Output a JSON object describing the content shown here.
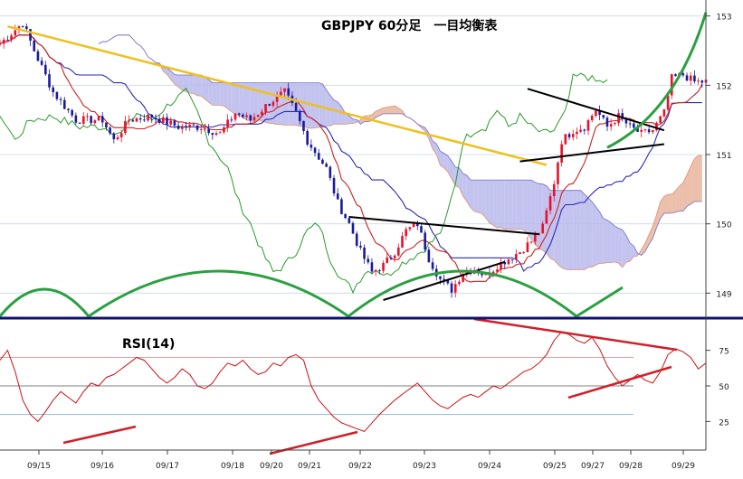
{
  "chart_data": [
    {
      "type": "candlestick",
      "title": "GBPJPY 60分足　一目均衡表",
      "ylim": [
        148.6,
        153.1
      ],
      "y_ticks": [
        "153",
        "152",
        "151",
        "150",
        "149"
      ],
      "x_ticks": [
        "09/15",
        "09/16",
        "09/17",
        "09/18",
        "09/20",
        "09/21",
        "09/22",
        "09/23",
        "09/24",
        "09/25",
        "09/27",
        "09/28",
        "09/29"
      ],
      "colors": {
        "bull_candle": "#e8102a",
        "bear_candle": "#1a1a9a",
        "tenkan": "#cc2020",
        "kijun": "#2a2ab8",
        "chikou": "#2a9a2a",
        "cloud_bull": "#e8b49a",
        "cloud_bear": "#b8b8ec",
        "cycle_curve": "#2aa040",
        "trendline_long": "#f0c020",
        "triangle_lines": "#000000"
      },
      "price_path": [
        [
          0,
          152.6
        ],
        [
          6,
          152.9
        ],
        [
          9,
          152.5
        ],
        [
          14,
          151.9
        ],
        [
          20,
          151.5
        ],
        [
          27,
          151.5
        ],
        [
          30,
          151.2
        ],
        [
          34,
          151.5
        ],
        [
          40,
          151.55
        ],
        [
          47,
          151.4
        ],
        [
          53,
          151.4
        ],
        [
          58,
          151.3
        ],
        [
          62,
          151.6
        ],
        [
          66,
          151.5
        ],
        [
          71,
          151.75
        ],
        [
          75,
          151.9
        ],
        [
          78,
          151.6
        ],
        [
          81,
          151.2
        ],
        [
          86,
          150.8
        ],
        [
          89,
          150.3
        ],
        [
          92,
          150.0
        ],
        [
          95,
          149.6
        ],
        [
          98,
          149.3
        ],
        [
          101,
          149.4
        ],
        [
          104,
          149.6
        ],
        [
          107,
          149.9
        ],
        [
          110,
          150.0
        ],
        [
          113,
          149.5
        ],
        [
          116,
          149.2
        ],
        [
          119,
          149.05
        ],
        [
          122,
          149.3
        ],
        [
          125,
          149.35
        ],
        [
          128,
          149.25
        ],
        [
          131,
          149.4
        ],
        [
          134,
          149.5
        ],
        [
          137,
          149.6
        ],
        [
          140,
          149.75
        ],
        [
          143,
          149.95
        ],
        [
          146,
          150.6
        ],
        [
          148,
          151.2
        ],
        [
          151,
          151.35
        ],
        [
          154,
          151.4
        ],
        [
          157,
          151.65
        ],
        [
          160,
          151.4
        ],
        [
          163,
          151.55
        ],
        [
          166,
          151.4
        ],
        [
          169,
          151.3
        ],
        [
          172,
          151.35
        ],
        [
          175,
          151.6
        ],
        [
          177,
          152.1
        ],
        [
          180,
          152.15
        ],
        [
          183,
          152.05
        ],
        [
          186,
          152.05
        ]
      ]
    },
    {
      "type": "line",
      "title": "RSI(14)",
      "ylim": [
        10,
        90
      ],
      "y_ticks": [
        "75",
        "50",
        "25"
      ],
      "reference_levels": [
        70,
        50,
        30
      ],
      "x_ticks": [
        "09/15",
        "09/16",
        "09/17",
        "09/18",
        "09/20",
        "09/21",
        "09/22",
        "09/23",
        "09/24",
        "09/25",
        "09/27",
        "09/28",
        "09/29"
      ],
      "colors": {
        "rsi": "#d01010",
        "trendlines": "#d0202a",
        "level_70": "#e8a0a0",
        "level_50": "#808080",
        "level_30": "#90c0e8"
      },
      "series": [
        {
          "values": [
            [
              0,
              68
            ],
            [
              2,
              75
            ],
            [
              4,
              60
            ],
            [
              6,
              40
            ],
            [
              8,
              30
            ],
            [
              10,
              25
            ],
            [
              12,
              32
            ],
            [
              14,
              40
            ],
            [
              16,
              46
            ],
            [
              18,
              42
            ],
            [
              20,
              38
            ],
            [
              22,
              46
            ],
            [
              24,
              52
            ],
            [
              26,
              50
            ],
            [
              28,
              56
            ],
            [
              30,
              58
            ],
            [
              32,
              62
            ],
            [
              34,
              66
            ],
            [
              36,
              70
            ],
            [
              38,
              68
            ],
            [
              40,
              62
            ],
            [
              42,
              56
            ],
            [
              44,
              52
            ],
            [
              46,
              56
            ],
            [
              48,
              62
            ],
            [
              50,
              58
            ],
            [
              52,
              50
            ],
            [
              54,
              48
            ],
            [
              56,
              52
            ],
            [
              58,
              60
            ],
            [
              60,
              66
            ],
            [
              62,
              64
            ],
            [
              64,
              68
            ],
            [
              66,
              62
            ],
            [
              68,
              58
            ],
            [
              70,
              60
            ],
            [
              72,
              66
            ],
            [
              74,
              64
            ],
            [
              76,
              70
            ],
            [
              78,
              72
            ],
            [
              80,
              68
            ],
            [
              82,
              50
            ],
            [
              84,
              40
            ],
            [
              86,
              34
            ],
            [
              88,
              28
            ],
            [
              90,
              24
            ],
            [
              92,
              22
            ],
            [
              94,
              20
            ],
            [
              96,
              18
            ],
            [
              98,
              24
            ],
            [
              100,
              30
            ],
            [
              102,
              35
            ],
            [
              104,
              40
            ],
            [
              106,
              44
            ],
            [
              108,
              48
            ],
            [
              110,
              52
            ],
            [
              112,
              46
            ],
            [
              114,
              40
            ],
            [
              116,
              36
            ],
            [
              118,
              34
            ],
            [
              120,
              38
            ],
            [
              122,
              42
            ],
            [
              124,
              44
            ],
            [
              126,
              42
            ],
            [
              128,
              46
            ],
            [
              130,
              50
            ],
            [
              132,
              48
            ],
            [
              134,
              52
            ],
            [
              136,
              56
            ],
            [
              138,
              60
            ],
            [
              140,
              62
            ],
            [
              142,
              66
            ],
            [
              144,
              72
            ],
            [
              146,
              82
            ],
            [
              148,
              88
            ],
            [
              150,
              86
            ],
            [
              152,
              82
            ],
            [
              154,
              80
            ],
            [
              156,
              84
            ],
            [
              158,
              76
            ],
            [
              160,
              64
            ],
            [
              162,
              56
            ],
            [
              164,
              50
            ],
            [
              166,
              54
            ],
            [
              168,
              58
            ],
            [
              170,
              54
            ],
            [
              172,
              52
            ],
            [
              174,
              60
            ],
            [
              176,
              72
            ],
            [
              178,
              76
            ],
            [
              180,
              74
            ],
            [
              182,
              70
            ],
            [
              184,
              62
            ],
            [
              186,
              66
            ]
          ]
        }
      ]
    }
  ]
}
